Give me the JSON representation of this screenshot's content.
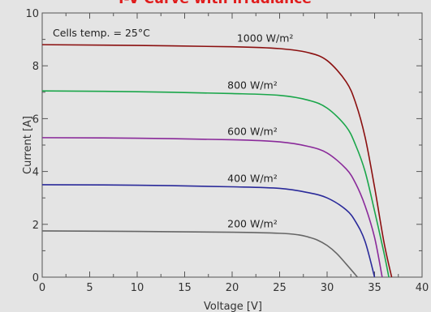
{
  "chart_data": {
    "type": "line",
    "title": "I-V Curve with irradiance",
    "xlabel": "Voltage [V]",
    "ylabel": "Current [A]",
    "xlim": [
      0,
      40
    ],
    "ylim": [
      0,
      10
    ],
    "xticks": [
      0,
      5,
      10,
      15,
      20,
      25,
      30,
      35,
      40
    ],
    "yticks": [
      0,
      2,
      4,
      6,
      8,
      10
    ],
    "grid": false,
    "annotation": "Cells temp. = 25°C",
    "series": [
      {
        "name": "1000 W/m²",
        "color": "#8b1010",
        "x": [
          0,
          10,
          20,
          25,
          28,
          30,
          32,
          33,
          34,
          35,
          36,
          36.8
        ],
        "y": [
          8.8,
          8.77,
          8.72,
          8.65,
          8.5,
          8.2,
          7.4,
          6.6,
          5.3,
          3.4,
          1.3,
          0
        ]
      },
      {
        "name": "800 W/m²",
        "color": "#1aa64a",
        "x": [
          0,
          10,
          20,
          25,
          28,
          30,
          32,
          33,
          34,
          35,
          36,
          36.5
        ],
        "y": [
          7.05,
          7.02,
          6.95,
          6.88,
          6.7,
          6.4,
          5.7,
          5.0,
          4.0,
          2.5,
          0.9,
          0
        ]
      },
      {
        "name": "600 W/m²",
        "color": "#8a2a9a",
        "x": [
          0,
          10,
          20,
          25,
          28,
          30,
          32,
          33,
          34,
          35,
          35.8
        ],
        "y": [
          5.28,
          5.26,
          5.2,
          5.12,
          4.95,
          4.7,
          4.1,
          3.55,
          2.7,
          1.5,
          0
        ]
      },
      {
        "name": "400 W/m²",
        "color": "#2a2a9a",
        "x": [
          0,
          10,
          20,
          25,
          28,
          30,
          32,
          33,
          34,
          35
        ],
        "y": [
          3.5,
          3.48,
          3.42,
          3.36,
          3.2,
          3.0,
          2.55,
          2.1,
          1.35,
          0
        ]
      },
      {
        "name": "200 W/m²",
        "color": "#666666",
        "x": [
          0,
          10,
          20,
          25,
          27,
          28,
          29,
          30,
          31,
          32,
          33.2
        ],
        "y": [
          1.75,
          1.73,
          1.7,
          1.66,
          1.6,
          1.52,
          1.4,
          1.2,
          0.9,
          0.5,
          0
        ]
      }
    ]
  }
}
